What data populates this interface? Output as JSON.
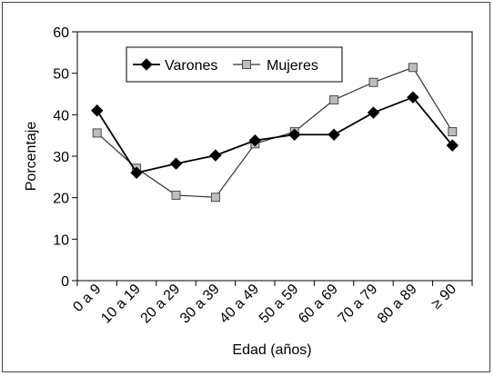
{
  "chart_data": {
    "type": "line",
    "title": "",
    "xlabel": "Edad (años)",
    "ylabel": "Porcentaje",
    "categories": [
      "0 a 9",
      "10 a 19",
      "20 a 29",
      "30 a 39",
      "40 a 49",
      "50 a 59",
      "60 a 69",
      "70 a 79",
      "80 a 89",
      "≥ 90"
    ],
    "ylim": [
      0,
      60
    ],
    "yticks": [
      0,
      10,
      20,
      30,
      40,
      50,
      60
    ],
    "grid": false,
    "legend_position": "top-right",
    "series": [
      {
        "name": "Varones",
        "marker": "diamond",
        "color": "#000000",
        "values": [
          41,
          26,
          28.2,
          30.2,
          33.8,
          35.2,
          35.2,
          40.5,
          44.2,
          32.6
        ]
      },
      {
        "name": "Mujeres",
        "marker": "square",
        "color": "#999999",
        "values": [
          35.6,
          27.1,
          20.6,
          20.1,
          33,
          35.9,
          43.6,
          47.8,
          51.4,
          35.9
        ]
      }
    ]
  }
}
